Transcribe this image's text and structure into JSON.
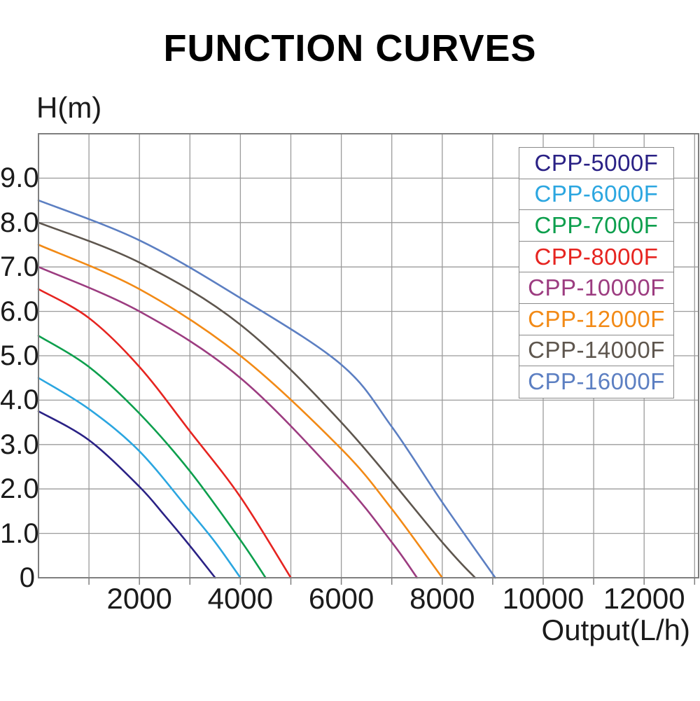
{
  "title": "FUNCTION CURVES",
  "y_axis_label": "H(m)",
  "x_axis_label": "Output(L/h)",
  "colors": {
    "background": "#ffffff",
    "plot_border": "#7f7f7f",
    "gridline": "#9b9b9b",
    "axis_text": "#1b1b1b",
    "title_text": "#000000",
    "legend_border": "#8a8a8a"
  },
  "chart_data": {
    "type": "line",
    "title": "FUNCTION CURVES",
    "xlabel": "Output(L/h)",
    "ylabel": "H(m)",
    "xlim": [
      0,
      13100
    ],
    "ylim": [
      0,
      10
    ],
    "grid": true,
    "x_grid_step": 1000,
    "y_grid_step": 1,
    "legend_position": "top-right",
    "x_tick_values": [
      2000,
      4000,
      6000,
      8000,
      10000,
      12000
    ],
    "x_tick_labels": [
      "2000",
      "4000",
      "6000",
      "8000",
      "10000",
      "12000"
    ],
    "y_tick_values": [
      9,
      8,
      7,
      6,
      5,
      4,
      3,
      2,
      1,
      0
    ],
    "y_tick_labels": [
      "9.0",
      "8.0",
      "7.0",
      "6.0",
      "5.0",
      "4.0",
      "3.0",
      "2.0",
      "1.0",
      "0"
    ],
    "series": [
      {
        "name": "CPP-5000F",
        "color": "#2a2185",
        "points": [
          [
            0,
            3.75
          ],
          [
            1000,
            3.1
          ],
          [
            2000,
            2.05
          ],
          [
            2500,
            1.4
          ],
          [
            3000,
            0.72
          ],
          [
            3500,
            0
          ]
        ]
      },
      {
        "name": "CPP-6000F",
        "color": "#2ba6e0",
        "points": [
          [
            0,
            4.5
          ],
          [
            1000,
            3.8
          ],
          [
            2000,
            2.85
          ],
          [
            3000,
            1.5
          ],
          [
            3500,
            0.8
          ],
          [
            4000,
            0
          ]
        ]
      },
      {
        "name": "CPP-7000F",
        "color": "#0d9f4d",
        "points": [
          [
            0,
            5.45
          ],
          [
            1000,
            4.75
          ],
          [
            2000,
            3.7
          ],
          [
            3000,
            2.4
          ],
          [
            4000,
            0.85
          ],
          [
            4500,
            0
          ]
        ]
      },
      {
        "name": "CPP-8000F",
        "color": "#e62420",
        "points": [
          [
            0,
            6.5
          ],
          [
            1000,
            5.85
          ],
          [
            2000,
            4.75
          ],
          [
            3000,
            3.3
          ],
          [
            4000,
            1.82
          ],
          [
            5000,
            0
          ]
        ]
      },
      {
        "name": "CPP-10000F",
        "color": "#9c3c80",
        "points": [
          [
            0,
            7.0
          ],
          [
            2000,
            6.0
          ],
          [
            4000,
            4.5
          ],
          [
            6000,
            2.2
          ],
          [
            7000,
            0.8
          ],
          [
            7500,
            0
          ]
        ]
      },
      {
        "name": "CPP-12000F",
        "color": "#f28a16",
        "points": [
          [
            0,
            7.5
          ],
          [
            2000,
            6.5
          ],
          [
            4000,
            5.0
          ],
          [
            6000,
            2.9
          ],
          [
            7000,
            1.55
          ],
          [
            8000,
            0
          ]
        ]
      },
      {
        "name": "CPP-14000F",
        "color": "#5e564e",
        "points": [
          [
            0,
            8.0
          ],
          [
            2000,
            7.1
          ],
          [
            4000,
            5.7
          ],
          [
            6000,
            3.5
          ],
          [
            8000,
            0.8
          ],
          [
            8650,
            0
          ]
        ]
      },
      {
        "name": "CPP-16000F",
        "color": "#5c7fc2",
        "points": [
          [
            0,
            8.5
          ],
          [
            2000,
            7.6
          ],
          [
            4000,
            6.3
          ],
          [
            6000,
            4.8
          ],
          [
            7000,
            3.4
          ],
          [
            8000,
            1.7
          ],
          [
            9050,
            0
          ]
        ]
      }
    ]
  }
}
